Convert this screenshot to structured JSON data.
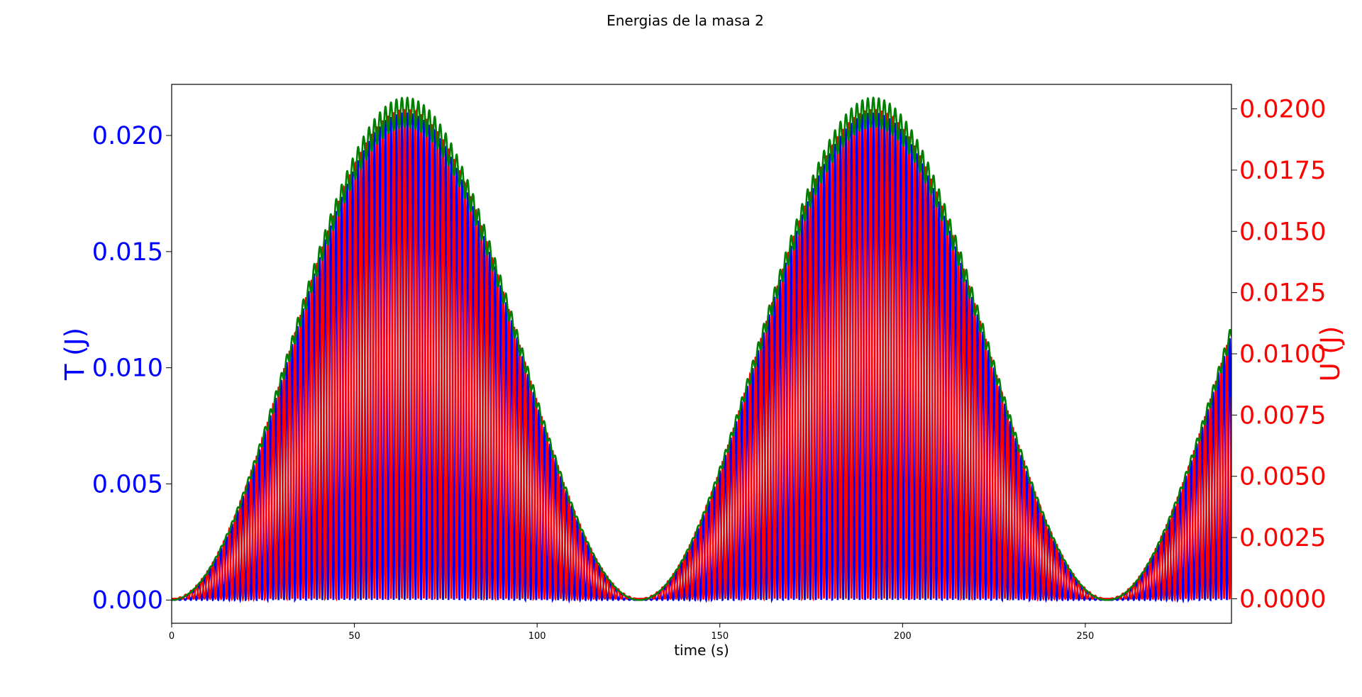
{
  "chart_data": {
    "type": "line",
    "title": "Energias de la masa 2",
    "xlabel": "time (s)",
    "ylabel_left": "T (J)",
    "ylabel_right": "U (J)",
    "xlim": [
      0,
      290
    ],
    "ylim_left": [
      -0.001,
      0.0222
    ],
    "ylim_right": [
      -0.001,
      0.021
    ],
    "x_ticks": [
      0,
      50,
      100,
      150,
      200,
      250
    ],
    "x_tick_labels": [
      "0",
      "50",
      "100",
      "150",
      "200",
      "250"
    ],
    "y_left_ticks": [
      0.0,
      0.005,
      0.01,
      0.015,
      0.02
    ],
    "y_left_tick_labels": [
      "0.000",
      "0.005",
      "0.010",
      "0.015",
      "0.020"
    ],
    "y_right_ticks": [
      0.0,
      0.0025,
      0.005,
      0.0075,
      0.01,
      0.0125,
      0.015,
      0.0175,
      0.02
    ],
    "y_right_tick_labels": [
      "0.0000",
      "0.0025",
      "0.0050",
      "0.0075",
      "0.0100",
      "0.0125",
      "0.0150",
      "0.0175",
      "0.0200"
    ],
    "grid": false,
    "legend": "none",
    "colors": {
      "T": "#0000ff",
      "U": "#ff0000",
      "total": "#008000",
      "left_axis_text": "#0000ff",
      "right_axis_text": "#ff0000"
    },
    "series": [
      {
        "key": "T",
        "axis": "left",
        "beat_period_s": 128,
        "oscillation_period_s": 3,
        "envelope_peak": 0.021,
        "envelope_peak_times_s": [
          64,
          192
        ]
      },
      {
        "key": "U",
        "axis": "right",
        "beat_period_s": 128,
        "oscillation_period_s": 3,
        "envelope_peak": 0.02,
        "envelope_peak_times_s": [
          64,
          192
        ]
      },
      {
        "key": "total",
        "axis": "left",
        "beat_period_s": 128,
        "envelope_peak": 0.021,
        "envelope_peak_times_s": [
          64,
          192
        ]
      }
    ]
  }
}
